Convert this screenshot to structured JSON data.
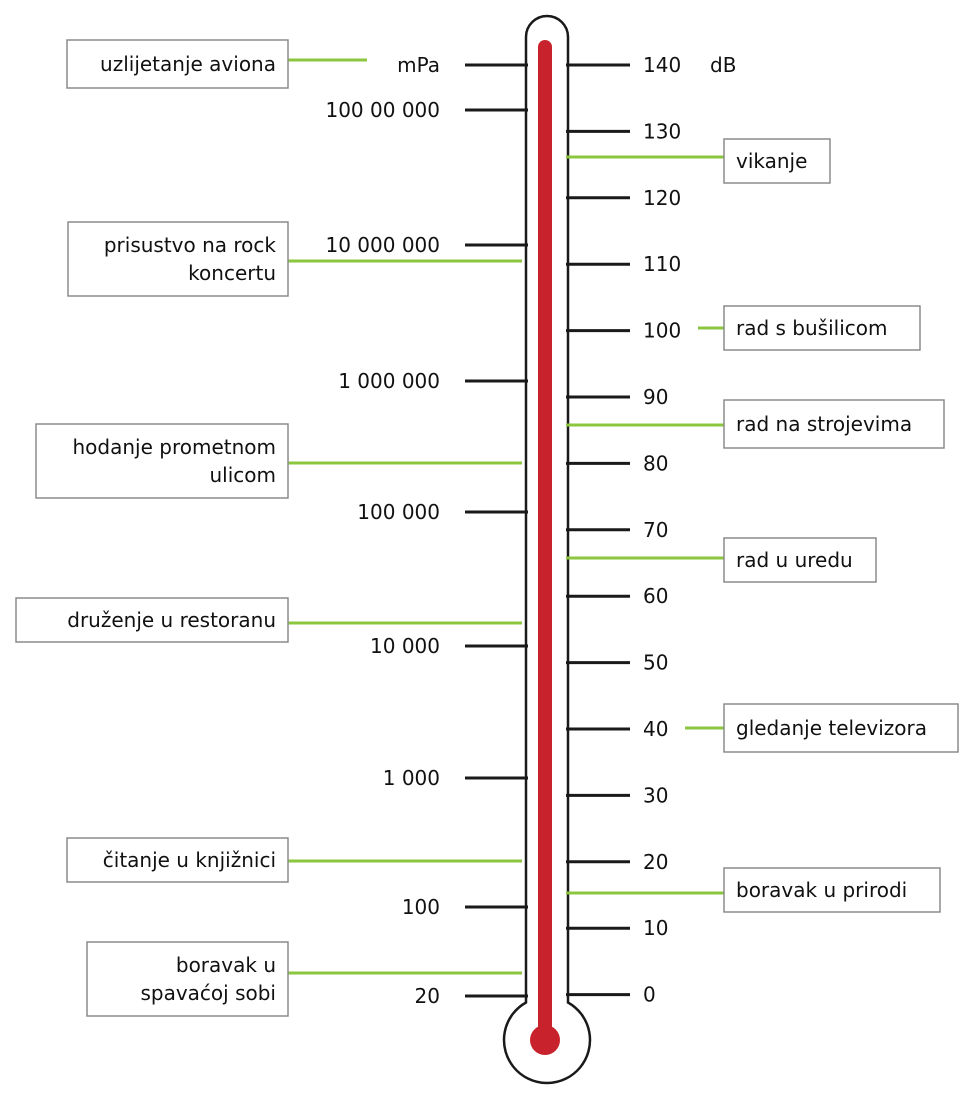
{
  "colors": {
    "mercury": "#c8232c",
    "leader": "#8cc63f",
    "tick": "#1a1a1a",
    "box_border": "#8c8c8c",
    "tube": "#1a1a1a"
  },
  "units": {
    "left": "mPa",
    "right": "dB"
  },
  "left_scale": [
    "100 00 000",
    "10 000 000",
    "1 000 000",
    "100 000",
    "10 000",
    "1 000",
    "100",
    "20"
  ],
  "right_scale": [
    "140",
    "130",
    "120",
    "110",
    "100",
    "90",
    "80",
    "70",
    "60",
    "50",
    "40",
    "30",
    "20",
    "10",
    "0"
  ],
  "left_labels": [
    {
      "lines": [
        "uzlijetanje aviona"
      ]
    },
    {
      "lines": [
        "prisustvo na rock",
        "koncertu"
      ]
    },
    {
      "lines": [
        "hodanje prometnom",
        "ulicom"
      ]
    },
    {
      "lines": [
        "druženje u restoranu"
      ]
    },
    {
      "lines": [
        "čitanje u knjižnici"
      ]
    },
    {
      "lines": [
        "boravak u",
        "spavaćoj sobi"
      ]
    }
  ],
  "right_labels": [
    {
      "lines": [
        "vikanje"
      ]
    },
    {
      "lines": [
        "rad s bušilicom"
      ]
    },
    {
      "lines": [
        "rad na strojevima"
      ]
    },
    {
      "lines": [
        "rad u uredu"
      ]
    },
    {
      "lines": [
        "gledanje televizora"
      ]
    },
    {
      "lines": [
        "boravak u prirodi"
      ]
    }
  ]
}
